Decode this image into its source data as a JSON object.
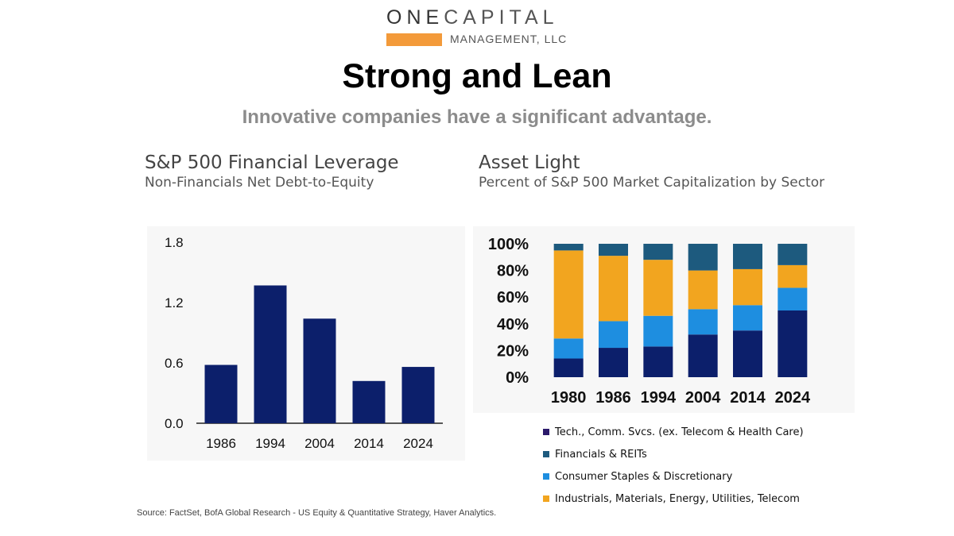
{
  "logo": {
    "line1_a": "ONE",
    "line1_b": "CAPITAL",
    "line2": "MANAGEMENT, LLC",
    "accent": "#f39a3a"
  },
  "title": "Strong and Lean",
  "subtitle": "Innovative companies have a significant advantage.",
  "chart_data": [
    {
      "type": "bar",
      "title": "S&P 500 Financial Leverage",
      "subtitle": "Non-Financials Net Debt-to-Equity",
      "categories": [
        "1986",
        "1994",
        "2004",
        "2014",
        "2024"
      ],
      "values": [
        0.58,
        1.37,
        1.04,
        0.42,
        0.56
      ],
      "ylim": [
        0,
        1.8
      ],
      "yticks": [
        1.8,
        1.2,
        0.6,
        0.0
      ],
      "ytick_labels": [
        "1.8",
        "1.2",
        "0.6",
        "0.0"
      ],
      "color": "#0c1f6b",
      "grid": false
    },
    {
      "type": "bar",
      "stacked": true,
      "title": "Asset Light",
      "subtitle": "Percent of S&P 500 Market Capitalization by Sector",
      "categories": [
        "1980",
        "1986",
        "1994",
        "2004",
        "2014",
        "2024"
      ],
      "ylim": [
        0,
        100
      ],
      "yticks": [
        100,
        80,
        60,
        40,
        20,
        0
      ],
      "ytick_labels": [
        "100%",
        "80%",
        "60%",
        "40%",
        "20%",
        "0%"
      ],
      "series": [
        {
          "name": "Tech., Comm. Svcs. (ex. Telecom & Health Care)",
          "color": "#0c1f6b",
          "values": [
            14,
            22,
            23,
            32,
            35,
            50
          ]
        },
        {
          "name": "Consumer Staples & Discretionary",
          "color": "#1e8ee0",
          "values": [
            15,
            20,
            23,
            19,
            19,
            17
          ]
        },
        {
          "name": "Industrials, Materials, Energy, Utilities, Telecom",
          "color": "#f2a51f",
          "values": [
            66,
            49,
            42,
            29,
            27,
            17
          ]
        },
        {
          "name": "Financials & REITs",
          "color": "#1d5a7e",
          "values": [
            5,
            9,
            12,
            20,
            19,
            16
          ]
        }
      ],
      "legend": {
        "placement": "bottom",
        "order": [
          {
            "name": "Tech., Comm. Svcs. (ex. Telecom & Health Care)",
            "color": "#2b1a6b"
          },
          {
            "name": "Financials & REITs",
            "color": "#1d5a7e"
          },
          {
            "name": "Consumer Staples & Discretionary",
            "color": "#1e8ee0"
          },
          {
            "name": "Industrials, Materials, Energy, Utilities, Telecom",
            "color": "#f2a51f"
          }
        ]
      },
      "grid": false
    }
  ],
  "source": "Source: FactSet, BofA Global Research - US Equity & Quantitative Strategy, Haver Analytics."
}
